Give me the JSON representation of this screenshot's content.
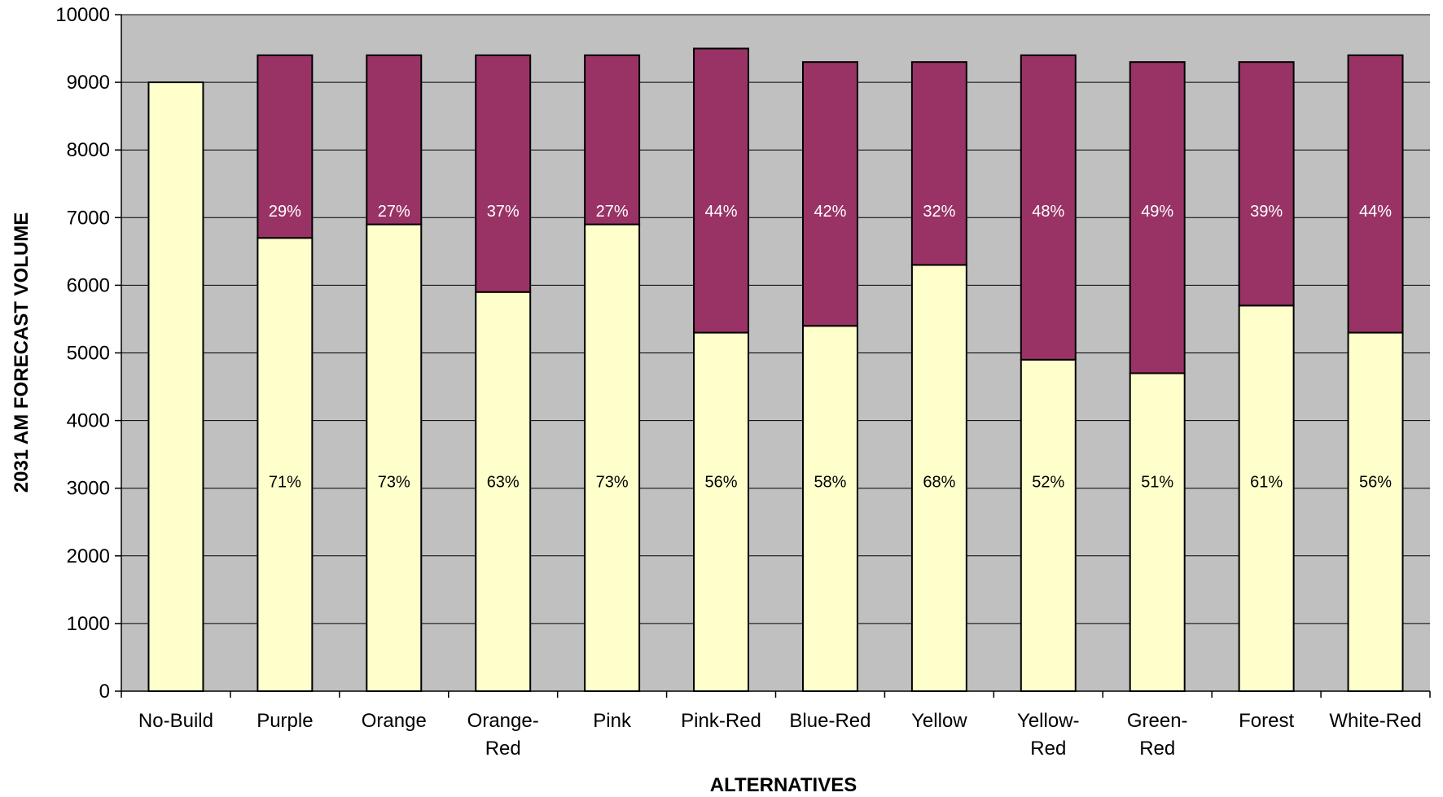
{
  "chart_data": {
    "type": "bar",
    "stacked": true,
    "title": "",
    "xlabel": "ALTERNATIVES",
    "ylabel": "2031 AM FORECAST VOLUME",
    "ylim": [
      0,
      10000
    ],
    "yticks": [
      0,
      1000,
      2000,
      3000,
      4000,
      5000,
      6000,
      7000,
      8000,
      9000,
      10000
    ],
    "grid": true,
    "legend": "none",
    "plot_background": "#c0c0c0",
    "categories": [
      [
        "No-Build"
      ],
      [
        "Purple"
      ],
      [
        "Orange"
      ],
      [
        "Orange-",
        "Red"
      ],
      [
        "Pink"
      ],
      [
        "Pink-Red"
      ],
      [
        "Blue-Red"
      ],
      [
        "Yellow"
      ],
      [
        "Yellow-",
        "Red"
      ],
      [
        "Green-",
        "Red"
      ],
      [
        "Forest"
      ],
      [
        "White-Red"
      ]
    ],
    "series": [
      {
        "color": "#ffffcc",
        "label_color": "#000000",
        "values": [
          9000,
          6700,
          6900,
          5900,
          6900,
          5300,
          5400,
          6300,
          4900,
          4700,
          5700,
          5300
        ],
        "labels": [
          "",
          "71%",
          "73%",
          "63%",
          "73%",
          "56%",
          "58%",
          "68%",
          "52%",
          "51%",
          "61%",
          "56%"
        ]
      },
      {
        "color": "#993366",
        "label_color": "#ffffff",
        "values": [
          0,
          2700,
          2500,
          3500,
          2500,
          4200,
          3900,
          3000,
          4500,
          4600,
          3600,
          4100
        ],
        "labels": [
          "",
          "29%",
          "27%",
          "37%",
          "27%",
          "44%",
          "42%",
          "32%",
          "48%",
          "49%",
          "39%",
          "44%"
        ]
      }
    ]
  }
}
